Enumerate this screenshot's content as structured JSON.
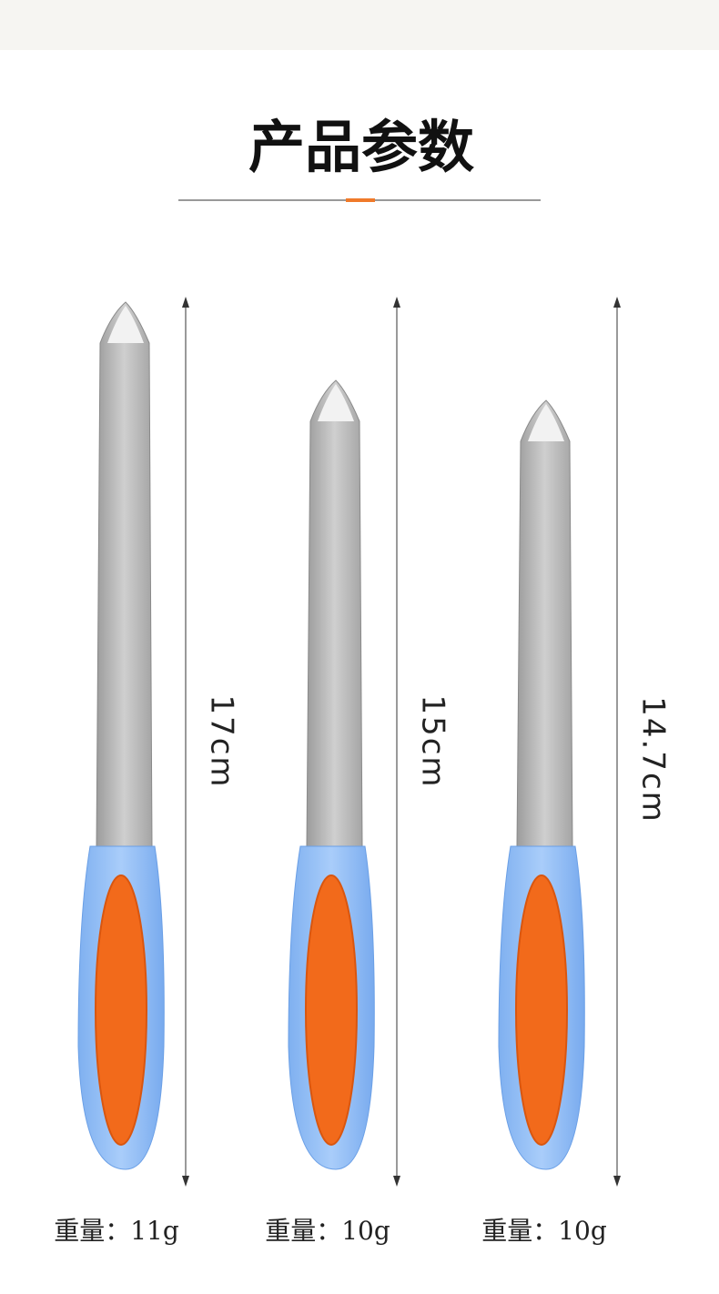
{
  "title": "产品参数",
  "items": [
    {
      "length": "17cm",
      "weight": "重量：11g"
    },
    {
      "length": "15cm",
      "weight": "重量：10g"
    },
    {
      "length": "14.7cm",
      "weight": "重量：10g"
    }
  ]
}
